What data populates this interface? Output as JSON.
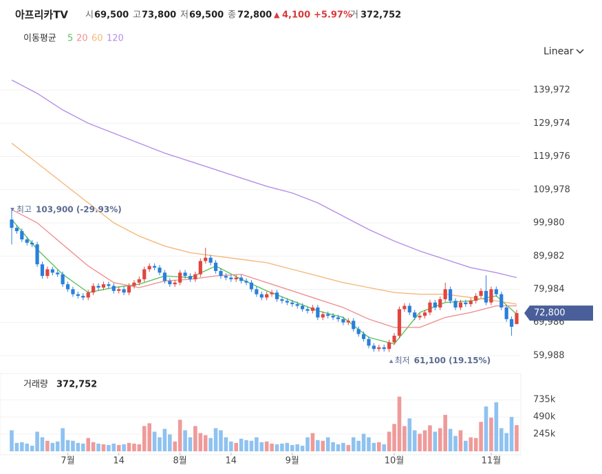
{
  "header": {
    "name": "아프리카TV",
    "items": [
      {
        "label": "시",
        "value": "69,500"
      },
      {
        "label": "고",
        "value": "73,800"
      },
      {
        "label": "저",
        "value": "69,500"
      },
      {
        "label": "종",
        "value": "72,800"
      }
    ],
    "change": "4,100",
    "change_pct": "+5.97%",
    "volume_label": "거",
    "volume_value": "372,752",
    "scale_mode": "Linear"
  },
  "chart_data": {
    "type": "candlestick",
    "up_color": "#e0463f",
    "down_color": "#2a7fdb",
    "open": [
      101000,
      98500,
      97500,
      95000,
      94000,
      93500,
      87500,
      84000,
      86000,
      85000,
      84500,
      81500,
      80000,
      78500,
      78000,
      77500,
      79000,
      81000,
      80500,
      81500,
      81000,
      79500,
      80000,
      79000,
      81000,
      82000,
      83000,
      86000,
      87000,
      86500,
      85000,
      82500,
      81500,
      82000,
      85000,
      84000,
      83000,
      84500,
      88500,
      89500,
      88000,
      85500,
      84000,
      83500,
      83000,
      83500,
      82500,
      82000,
      80000,
      78500,
      77500,
      78500,
      79000,
      77000,
      76500,
      76000,
      75500,
      75000,
      74000,
      73500,
      74500,
      71500,
      72500,
      72000,
      71500,
      71000,
      70000,
      70500,
      68000,
      66500,
      65000,
      63000,
      62000,
      62500,
      62000,
      64000,
      66000,
      74000,
      75000,
      73000,
      71500,
      72000,
      73000,
      76000,
      74500,
      77000,
      80000,
      76500,
      74500,
      76000,
      75500,
      76500,
      78000,
      79500,
      76000,
      80000,
      78500,
      74500,
      71000,
      69500
    ],
    "high": [
      103900,
      99300,
      98300,
      95800,
      94800,
      94300,
      88300,
      86800,
      86800,
      85800,
      85300,
      82300,
      80800,
      79300,
      78800,
      79800,
      81800,
      81800,
      82300,
      82300,
      81800,
      80800,
      80800,
      81800,
      82800,
      83800,
      86800,
      87800,
      87800,
      87300,
      85800,
      83300,
      82800,
      85800,
      85800,
      84800,
      85300,
      89300,
      92500,
      90300,
      88800,
      86300,
      84800,
      84300,
      84300,
      84300,
      83300,
      82800,
      80800,
      79300,
      79300,
      79800,
      79800,
      77800,
      77300,
      76800,
      76300,
      75800,
      74800,
      75300,
      75300,
      73300,
      73300,
      72800,
      72300,
      71800,
      71300,
      71300,
      68800,
      67300,
      65800,
      63800,
      63300,
      63300,
      64800,
      66800,
      74800,
      75800,
      75800,
      73800,
      72800,
      73800,
      76800,
      76800,
      77800,
      82000,
      80800,
      77300,
      76800,
      76800,
      77300,
      78800,
      80300,
      84200,
      80800,
      80800,
      79300,
      75300,
      71800,
      73800
    ],
    "low": [
      93500,
      96700,
      94200,
      93200,
      92700,
      86700,
      83200,
      83200,
      84200,
      83700,
      80700,
      79200,
      77700,
      77200,
      76700,
      76700,
      78200,
      79700,
      79700,
      80200,
      78700,
      78700,
      78200,
      78200,
      80200,
      81200,
      82200,
      85200,
      85700,
      84200,
      81700,
      80700,
      80700,
      81200,
      83200,
      82200,
      82200,
      83700,
      87700,
      87200,
      84700,
      83200,
      82700,
      82200,
      82200,
      81700,
      81200,
      79200,
      77700,
      76700,
      76700,
      77700,
      76200,
      75700,
      75200,
      74700,
      74200,
      73200,
      72700,
      72700,
      70700,
      70700,
      71200,
      70700,
      70200,
      69200,
      69200,
      67200,
      65700,
      64200,
      62200,
      61200,
      61200,
      61200,
      61100,
      63200,
      65200,
      73200,
      72200,
      70700,
      70700,
      71200,
      72200,
      73700,
      73700,
      76200,
      75700,
      73700,
      73700,
      74700,
      74700,
      75700,
      77200,
      75200,
      75200,
      77700,
      73700,
      70200,
      66000,
      69500
    ],
    "close": [
      98500,
      97500,
      95000,
      94000,
      93500,
      87500,
      84000,
      86000,
      85000,
      84500,
      81500,
      80000,
      78500,
      78000,
      77500,
      79000,
      81000,
      80500,
      81500,
      81000,
      79500,
      80000,
      79000,
      81000,
      82000,
      83000,
      86000,
      87000,
      86500,
      85000,
      82500,
      81500,
      82000,
      85000,
      84000,
      83000,
      84500,
      88500,
      89500,
      88000,
      85500,
      84000,
      83500,
      83000,
      83500,
      82500,
      82000,
      80000,
      78500,
      77500,
      78500,
      79000,
      77000,
      76500,
      76000,
      75500,
      75000,
      74000,
      73500,
      74500,
      71500,
      72500,
      72000,
      71500,
      71000,
      70000,
      70500,
      68000,
      66500,
      65000,
      63000,
      62000,
      62500,
      62000,
      64000,
      66000,
      74000,
      75000,
      73000,
      71500,
      72000,
      73000,
      76000,
      74500,
      77000,
      80000,
      76500,
      74500,
      76000,
      75500,
      76500,
      78000,
      79500,
      76000,
      80000,
      78500,
      74500,
      71000,
      68700,
      72800
    ],
    "ylim": [
      55222,
      147432
    ],
    "yticks": [
      {
        "value": 139972,
        "label": "139,972"
      },
      {
        "value": 129974,
        "label": "129,974"
      },
      {
        "value": 119976,
        "label": "119,976"
      },
      {
        "value": 109978,
        "label": "109,978"
      },
      {
        "value": 99980,
        "label": "99,980"
      },
      {
        "value": 89982,
        "label": "89,982"
      },
      {
        "value": 79984,
        "label": "79,984"
      },
      {
        "value": 69986,
        "label": "69,986"
      },
      {
        "value": 59988,
        "label": "59,988"
      }
    ],
    "xticks": [
      {
        "value": 11,
        "label": "7월"
      },
      {
        "value": 21,
        "label": "14"
      },
      {
        "value": 33,
        "label": "8월"
      },
      {
        "value": 43,
        "label": "14"
      },
      {
        "value": 55,
        "label": "9월"
      },
      {
        "value": 75,
        "label": "10월"
      },
      {
        "value": 94,
        "label": "11월"
      }
    ],
    "grid": true,
    "current_price_label": "72,800",
    "high_annotation": {
      "label": "최고",
      "text": "103,900 (-29.93%)"
    },
    "low_annotation": {
      "label": "최저",
      "text": "61,100 (19.15%)"
    },
    "moving_averages": {
      "label": "이동평균",
      "x": [
        0,
        5,
        10,
        15,
        20,
        25,
        30,
        35,
        40,
        45,
        50,
        55,
        60,
        65,
        70,
        75,
        80,
        85,
        90,
        95,
        99
      ],
      "series": [
        {
          "name": "5",
          "color": "#5cc25c",
          "values": [
            101000,
            92000,
            84500,
            79000,
            80500,
            81500,
            84000,
            83500,
            87000,
            83000,
            79500,
            76500,
            73500,
            71500,
            65500,
            63500,
            73000,
            76000,
            76500,
            78000,
            72500
          ]
        },
        {
          "name": "20",
          "color": "#f09090",
          "values": [
            104000,
            100000,
            93500,
            87000,
            82000,
            80500,
            82500,
            83000,
            84000,
            84500,
            82000,
            79500,
            77000,
            74500,
            71000,
            68500,
            68500,
            71500,
            73000,
            75000,
            75000
          ]
        },
        {
          "name": "60",
          "color": "#f5b87a",
          "values": [
            124000,
            118000,
            112000,
            106000,
            100000,
            96000,
            93000,
            91000,
            90000,
            89000,
            88000,
            86000,
            84000,
            82000,
            80500,
            79000,
            78500,
            78500,
            77500,
            76500,
            75500
          ]
        },
        {
          "name": "120",
          "color": "#b48de8",
          "values": [
            143000,
            139000,
            134000,
            130000,
            127000,
            124000,
            121000,
            118500,
            116000,
            113500,
            111000,
            109000,
            106000,
            102000,
            98000,
            94500,
            91500,
            89000,
            86500,
            85000,
            83500
          ]
        }
      ]
    },
    "volume": {
      "label": "거래량",
      "value_label": "372,752",
      "up_color": "#ef9a9a",
      "down_color": "#8ec2f0",
      "ylim": [
        0,
        1090000
      ],
      "yticks": [
        {
          "value": 735000,
          "label": "735k"
        },
        {
          "value": 490000,
          "label": "490k"
        },
        {
          "value": 245000,
          "label": "245k"
        }
      ],
      "values": [
        300000,
        120000,
        130000,
        110000,
        80000,
        280000,
        200000,
        150000,
        120000,
        140000,
        330000,
        160000,
        150000,
        120000,
        110000,
        190000,
        130000,
        110000,
        100000,
        90000,
        110000,
        90000,
        100000,
        120000,
        110000,
        100000,
        360000,
        400000,
        280000,
        200000,
        320000,
        240000,
        140000,
        450000,
        300000,
        200000,
        360000,
        260000,
        230000,
        190000,
        330000,
        300000,
        200000,
        140000,
        120000,
        180000,
        160000,
        150000,
        200000,
        130000,
        140000,
        110000,
        100000,
        110000,
        120000,
        90000,
        100000,
        80000,
        200000,
        260000,
        160000,
        150000,
        200000,
        130000,
        100000,
        120000,
        90000,
        200000,
        150000,
        250000,
        200000,
        120000,
        130000,
        100000,
        280000,
        390000,
        780000,
        360000,
        470000,
        300000,
        250000,
        300000,
        370000,
        280000,
        330000,
        520000,
        320000,
        220000,
        300000,
        150000,
        200000,
        190000,
        420000,
        640000,
        480000,
        700000,
        330000,
        260000,
        490000,
        372752
      ]
    }
  }
}
